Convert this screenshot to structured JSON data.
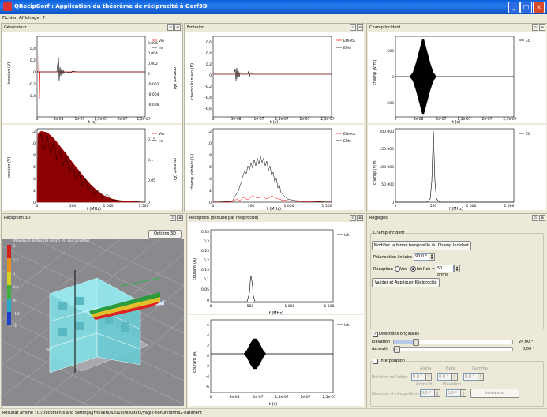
{
  "window": {
    "title": "QRecipGorf : Application du théorème de réciprocité à Gorf3D",
    "min": "_",
    "max": "□",
    "close": "x"
  },
  "menu": [
    "Fichier",
    "Affichage",
    "?"
  ],
  "panel_buttons": [
    "⊡",
    "⊠"
  ],
  "panels": {
    "generateur": {
      "title": "Générateur",
      "top": {
        "ylabel": "tension (V)",
        "y2label": "courant (A)",
        "xlabel": "t (s)",
        "yticks": [
          "0,4",
          "0,2",
          "0",
          "-0,2",
          "-0,4"
        ],
        "y2ticks": [
          "0,006",
          "0,004",
          "0,002",
          "0",
          "-0,002",
          "-0,004",
          "-0,006"
        ],
        "xticks": [
          "0",
          "5e-08",
          "1e-07",
          "1,5e-07",
          "2e-07",
          "2,5e-07"
        ],
        "legend": [
          "Vin",
          "Iin"
        ]
      },
      "bottom": {
        "ylabel": "tension (V)",
        "y2label": "courant (A)",
        "xlabel": "f (MHz)",
        "yticks": [
          "12",
          "10",
          "8",
          "6",
          "4",
          "2",
          "0"
        ],
        "y2ticks": [
          "0,15",
          "0,1",
          "0,05",
          "0"
        ],
        "xticks": [
          "0",
          "500",
          "1 000",
          "1 500"
        ],
        "legend": [
          "Vin",
          "Iin"
        ]
      }
    },
    "emission": {
      "title": "Emission",
      "top": {
        "ylabel": "champ lointain (V)",
        "xlabel": "t (s)",
        "yticks": [
          "0,6",
          "0,4",
          "0,2",
          "0",
          "-0,2",
          "-0,4",
          "-0,6"
        ],
        "xticks": [
          "0",
          "5e-08",
          "1e-07",
          "1,5e-07",
          "2e-07",
          "2,5e-07"
        ],
        "legend": [
          "Etheta",
          "EPhi"
        ]
      },
      "bottom": {
        "ylabel": "champ lointain (V)",
        "xlabel": "f (MHz)",
        "yticks": [
          "12",
          "10",
          "8",
          "6",
          "4",
          "2",
          "0"
        ],
        "xticks": [
          "0",
          "500",
          "1 000",
          "1 500"
        ],
        "legend": [
          "Etheta",
          "EPhi"
        ]
      }
    },
    "champ": {
      "title": "Champ Incident",
      "top": {
        "ylabel": "champ (V/m)",
        "xlabel": "t (s)",
        "yticks": [
          "500",
          "0",
          "-500"
        ],
        "xticks": [
          "0",
          "5e-08",
          "1e-07",
          "1,5e-07",
          "2e-07",
          "2,5e-07"
        ],
        "legend": [
          "E0"
        ]
      },
      "bottom": {
        "ylabel": "champ (V/m)",
        "xlabel": "f (MHz)",
        "yticks": [
          "200 000",
          "150 000",
          "100 000",
          "50 000",
          "0"
        ],
        "xticks": [
          "0",
          "500",
          "1 000",
          "1 500"
        ],
        "legend": [
          "E0"
        ]
      }
    },
    "reception3d": {
      "title": "Réception 3D",
      "options_button": "Options 3D",
      "overlay": "Maximum temporel de Ich (A) sur 50 ohms",
      "scale": [
        "2",
        "1,5",
        "1",
        "0,5",
        "0",
        "-1,5",
        "-2"
      ]
    },
    "recep": {
      "title": "Réception (déduite par réciprocité)",
      "top": {
        "ylabel": "courant (A)",
        "xlabel": "f (MHz)",
        "yticks": [
          "0,35",
          "0,3",
          "0,25",
          "0,2",
          "0,15",
          "0,1",
          "0,05",
          "0"
        ],
        "xticks": [
          "0",
          "500",
          "1 000",
          "1 500"
        ],
        "legend": [
          "Ich"
        ]
      },
      "bottom": {
        "ylabel": "courant (A)",
        "xlabel": "t (s)",
        "yticks": [
          "6",
          "4",
          "2",
          "0",
          "-2",
          "-4",
          "-6"
        ],
        "xticks": [
          "0",
          "5e-08",
          "1e-07",
          "1,5e-07",
          "2e-07",
          "2,5e-07"
        ],
        "legend": [
          "Ich"
        ]
      }
    },
    "reglages": {
      "title": "Réglages",
      "group_title": "Champ Incident",
      "modify_button": "Modifier la forme temporelle du Champ Incident",
      "polar_label": "Polarisation linéaire",
      "polar_value": "90,0 °",
      "reception_label": "Réception",
      "vco_label": "Vco",
      "ich_label": "Ich",
      "rch_label": "Rch =",
      "rch_value": "50 ohms",
      "apply_button": "Valider et Appliquer Réciprocité",
      "directions_label": "Directions originales",
      "elevation_label": "Elévation",
      "elevation_value": "24,00 °",
      "elevation_level": 0.18,
      "azimuth_label": "Azimuth",
      "azimuth_value": "0,00 °",
      "azimuth_level": 0.0,
      "interp_label": "Interpolation",
      "col_alpha": "Alpha",
      "col_beta": "Beta",
      "col_gamma": "Gamma",
      "rotation_label": "Rotation de l'objet",
      "rot_values": [
        "0,0 °",
        "0,0 °",
        "0,0 °"
      ],
      "col_azimuth": "Azimuth",
      "col_elevation": "Elévation",
      "dir_label": "Direction d'interpolation",
      "dir_values": [
        "0,0 °",
        "0,0 °"
      ],
      "interp_button": "Interpoler"
    }
  },
  "status": "Résultat affiché : C:/Documents and Settings/JF/divers/a2010/resultats/yagi2-nonuniforme2-batiment",
  "colors": {
    "red": "#ff0000",
    "black": "#000000",
    "accent": "#0a5fd8"
  }
}
